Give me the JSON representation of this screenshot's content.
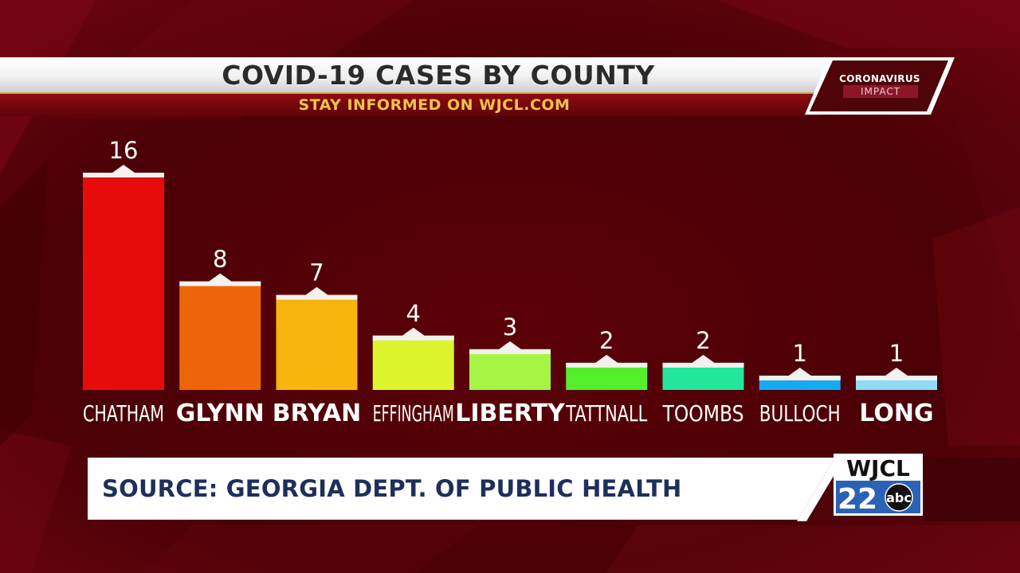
{
  "header": {
    "title": "COVID-19 CASES BY COUNTY",
    "subtitle": "STAY INFORMED ON WJCL.COM"
  },
  "badge": {
    "line1": "CORONAVIRUS",
    "line2": "IMPACT"
  },
  "source": {
    "text": "SOURCE: GEORGIA DEPT. OF PUBLIC HEALTH"
  },
  "logo": {
    "call_letters": "WJCL",
    "channel": "22",
    "network": "abc"
  },
  "colors": {
    "background": "#4a0006",
    "label": "#ffffff",
    "bar_cap": "#f4f1ee"
  },
  "chart_data": {
    "type": "bar",
    "title": "COVID-19 CASES BY COUNTY",
    "categories": [
      "CHATHAM",
      "GLYNN",
      "BRYAN",
      "EFFINGHAM",
      "LIBERTY",
      "TATTNALL",
      "TOOMBS",
      "BULLOCH",
      "LONG"
    ],
    "values": [
      16,
      8,
      7,
      4,
      3,
      2,
      2,
      1,
      1
    ],
    "value_labels": [
      "16",
      "8",
      "7",
      "4",
      "3",
      "2",
      "2",
      "1",
      "1"
    ],
    "bar_colors": [
      "#e60c0c",
      "#ee6408",
      "#f6b40d",
      "#dcf42c",
      "#a6f446",
      "#55ee2a",
      "#23e69a",
      "#16aaf0",
      "#8cdcf8"
    ],
    "ylim": [
      0,
      16
    ],
    "grid": false,
    "legend": "none",
    "xlabel": "",
    "ylabel": ""
  }
}
